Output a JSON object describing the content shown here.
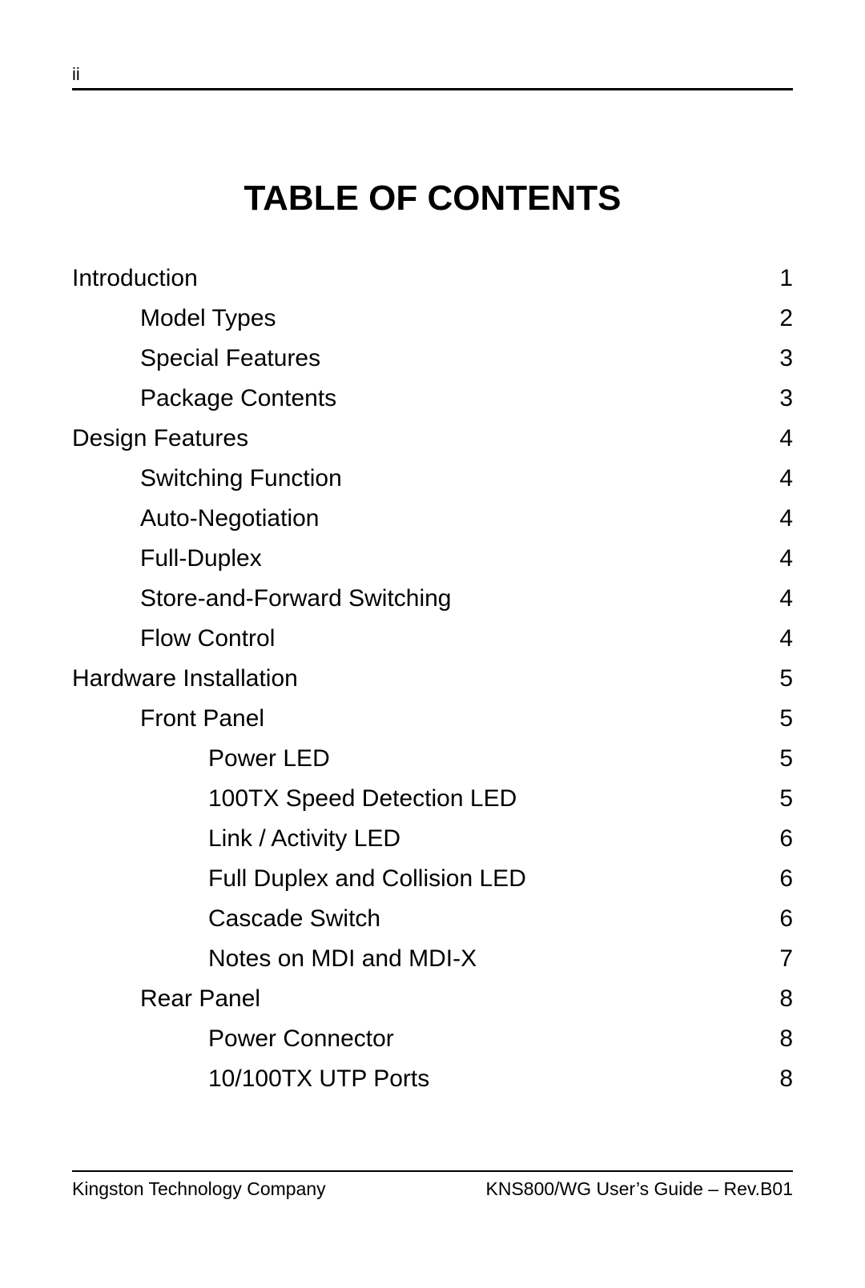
{
  "page": {
    "number_roman": "ii",
    "title": "TABLE OF CONTENTS",
    "background_color": "#ffffff",
    "text_color": "#000000",
    "rule_color": "#000000",
    "body_font_size_pt": 22,
    "title_font_size_pt": 32,
    "font_family": "Arial"
  },
  "toc": {
    "right_edge_aligned": true,
    "dot_leader": true,
    "entries": [
      {
        "label": "Introduction",
        "page": "1",
        "indent": 0
      },
      {
        "label": "Model Types",
        "page": "2",
        "indent": 1
      },
      {
        "label": "Special Features",
        "page": "3",
        "indent": 1
      },
      {
        "label": "Package Contents",
        "page": "3",
        "indent": 1
      },
      {
        "label": "Design Features",
        "page": "4",
        "indent": 0
      },
      {
        "label": "Switching Function",
        "page": "4",
        "indent": 1
      },
      {
        "label": "Auto-Negotiation",
        "page": "4",
        "indent": 1
      },
      {
        "label": "Full-Duplex",
        "page": "4",
        "indent": 1
      },
      {
        "label": "Store-and-Forward Switching",
        "page": "4",
        "indent": 1
      },
      {
        "label": "Flow Control",
        "page": "4",
        "indent": 1
      },
      {
        "label": "Hardware Installation",
        "page": "5",
        "indent": 0
      },
      {
        "label": "Front Panel",
        "page": "5",
        "indent": 1
      },
      {
        "label": "Power LED",
        "page": "5",
        "indent": 2
      },
      {
        "label": "100TX Speed Detection LED",
        "page": "5",
        "indent": 2
      },
      {
        "label": "Link / Activity LED",
        "page": "6",
        "indent": 2
      },
      {
        "label": "Full Duplex and Collision LED",
        "page": "6",
        "indent": 2
      },
      {
        "label": "Cascade Switch",
        "page": "6",
        "indent": 2
      },
      {
        "label": "Notes on MDI and MDI-X",
        "page": "7",
        "indent": 2
      },
      {
        "label": "Rear Panel",
        "page": "8",
        "indent": 1
      },
      {
        "label": "Power Connector",
        "page": "8",
        "indent": 2
      },
      {
        "label": "10/100TX UTP Ports",
        "page": "8",
        "indent": 2
      }
    ]
  },
  "footer": {
    "left": "Kingston Technology Company",
    "right": "KNS800/WG User’s Guide – Rev.B01"
  }
}
